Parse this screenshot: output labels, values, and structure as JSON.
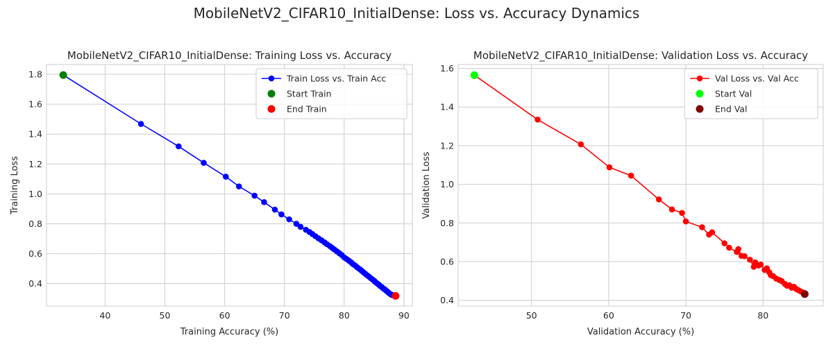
{
  "figure": {
    "suptitle": "MobileNetV2_CIFAR10_InitialDense: Loss vs. Accuracy Dynamics"
  },
  "chart_data": [
    {
      "type": "line",
      "title": "MobileNetV2_CIFAR10_InitialDense: Training Loss vs. Accuracy",
      "xlabel": "Training Accuracy (%)",
      "ylabel": "Training Loss",
      "xlim": [
        30.2,
        91.4
      ],
      "ylim": [
        0.25,
        1.865
      ],
      "xticks": [
        40,
        50,
        60,
        70,
        80,
        90
      ],
      "yticks": [
        0.4,
        0.6,
        0.8,
        1.0,
        1.2,
        1.4,
        1.6,
        1.8
      ],
      "ytick_format": 1,
      "grid": true,
      "legend_position": "top-right",
      "series": [
        {
          "name": "Train Loss vs. Train Acc",
          "color": "#0000ff",
          "marker": "circle",
          "x": [
            33.0,
            46.0,
            52.3,
            56.5,
            60.2,
            62.4,
            65.0,
            66.6,
            68.4,
            69.5,
            70.8,
            72.0,
            72.7,
            73.6,
            74.2,
            74.7,
            75.2,
            75.7,
            76.2,
            76.7,
            77.1,
            77.6,
            78.0,
            78.4,
            78.8,
            79.2,
            79.6,
            80.0,
            80.4,
            80.8,
            81.2,
            81.5,
            81.9,
            82.2,
            82.6,
            82.9,
            83.2,
            83.5,
            83.8,
            84.1,
            84.4,
            84.7,
            85.0,
            85.2,
            85.5,
            85.8,
            86.0,
            86.3,
            86.5,
            86.8,
            87.0,
            87.2,
            87.4,
            87.6,
            87.8,
            88.0,
            88.2,
            88.4,
            88.6
          ],
          "y": [
            1.795,
            1.468,
            1.318,
            1.208,
            1.115,
            1.05,
            0.988,
            0.945,
            0.895,
            0.863,
            0.83,
            0.8,
            0.78,
            0.76,
            0.745,
            0.731,
            0.717,
            0.703,
            0.69,
            0.676,
            0.664,
            0.651,
            0.639,
            0.627,
            0.615,
            0.603,
            0.591,
            0.575,
            0.565,
            0.553,
            0.541,
            0.53,
            0.519,
            0.508,
            0.497,
            0.487,
            0.477,
            0.467,
            0.457,
            0.448,
            0.438,
            0.429,
            0.42,
            0.411,
            0.402,
            0.393,
            0.385,
            0.377,
            0.369,
            0.361,
            0.354,
            0.347,
            0.34,
            0.334,
            0.328,
            0.324,
            0.322,
            0.32,
            0.318
          ]
        },
        {
          "name": "Start Train",
          "color": "#008000",
          "marker": "point",
          "x": [
            33.0
          ],
          "y": [
            1.795
          ]
        },
        {
          "name": "End Train",
          "color": "#ff0000",
          "marker": "point",
          "x": [
            88.6
          ],
          "y": [
            0.318
          ]
        }
      ]
    },
    {
      "type": "line",
      "title": "MobileNetV2_CIFAR10_InitialDense: Validation Loss vs. Accuracy",
      "xlabel": "Validation Accuracy (%)",
      "ylabel": "Validation Loss",
      "xlim": [
        40.5,
        87.8
      ],
      "ylim": [
        0.37,
        1.62
      ],
      "xticks": [
        50,
        60,
        70,
        80
      ],
      "yticks": [
        0.4,
        0.6,
        0.8,
        1.0,
        1.2,
        1.4,
        1.6
      ],
      "ytick_format": 1,
      "grid": true,
      "legend_position": "top-right",
      "series": [
        {
          "name": "Val Loss vs. Val Acc",
          "color": "#ff0000",
          "marker": "circle",
          "x": [
            42.6,
            50.8,
            56.4,
            60.1,
            62.9,
            66.5,
            68.2,
            69.5,
            70.0,
            72.1,
            73.0,
            73.4,
            75.0,
            75.6,
            76.6,
            76.8,
            77.2,
            77.6,
            78.3,
            78.8,
            79.0,
            79.4,
            79.7,
            80.2,
            80.5,
            80.8,
            81.0,
            81.3,
            81.7,
            82.1,
            82.4,
            82.8,
            83.1,
            83.4,
            83.7,
            84.0,
            84.3,
            84.6,
            84.9,
            85.2,
            85.4
          ],
          "y": [
            1.565,
            1.335,
            1.207,
            1.088,
            1.045,
            0.922,
            0.87,
            0.852,
            0.808,
            0.778,
            0.74,
            0.752,
            0.695,
            0.672,
            0.65,
            0.665,
            0.63,
            0.628,
            0.61,
            0.573,
            0.596,
            0.58,
            0.585,
            0.557,
            0.565,
            0.545,
            0.53,
            0.525,
            0.512,
            0.505,
            0.5,
            0.485,
            0.475,
            0.478,
            0.465,
            0.47,
            0.458,
            0.452,
            0.445,
            0.44,
            0.432
          ]
        },
        {
          "name": "Start Val",
          "color": "#00ff00",
          "marker": "point",
          "x": [
            42.6
          ],
          "y": [
            1.565
          ]
        },
        {
          "name": "End Val",
          "color": "#800000",
          "marker": "point",
          "x": [
            85.4
          ],
          "y": [
            0.432
          ]
        }
      ]
    }
  ]
}
